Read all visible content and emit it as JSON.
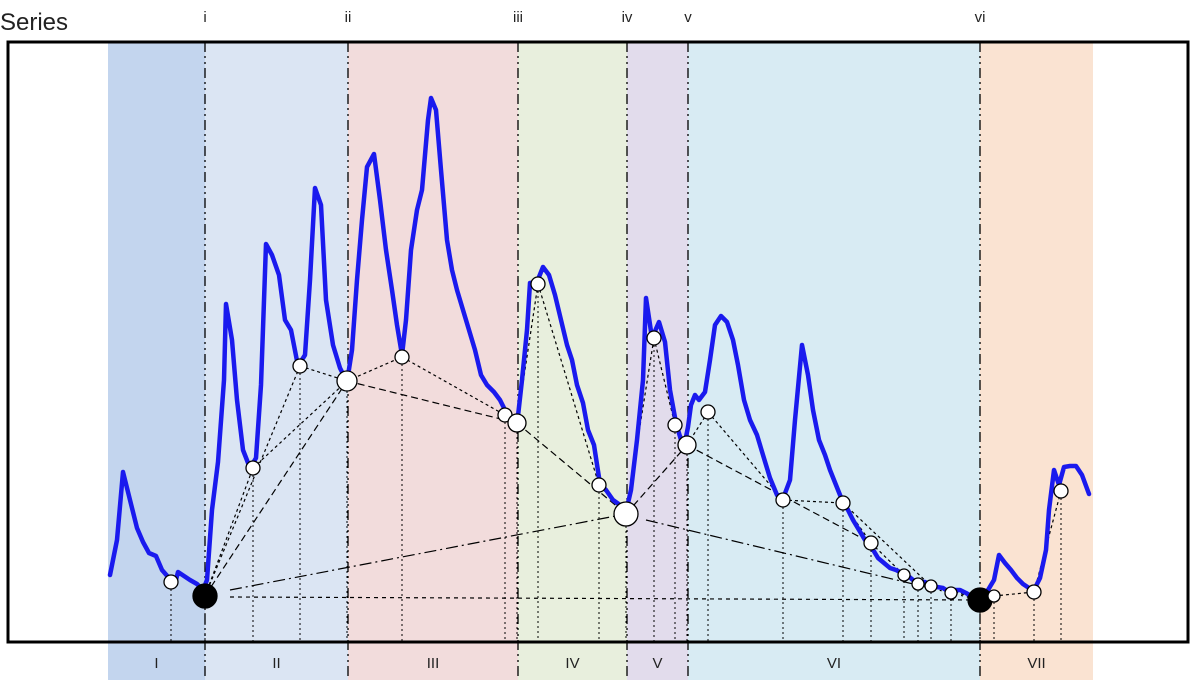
{
  "title": "Series",
  "boundary_labels": [
    "i",
    "ii",
    "iii",
    "iv",
    "v",
    "vi"
  ],
  "segment_labels": [
    "I",
    "II",
    "III",
    "IV",
    "V",
    "VI",
    "VII"
  ],
  "colors": {
    "series_line": "#1a1aee",
    "segments": [
      "#c3d5ee",
      "#dbe5f3",
      "#f2dcdc",
      "#e8efdd",
      "#e2dcec",
      "#d8ebf3",
      "#fae3d2"
    ],
    "frame": "#000000",
    "node_filled": "#000000",
    "node_open": "#ffffff"
  }
}
